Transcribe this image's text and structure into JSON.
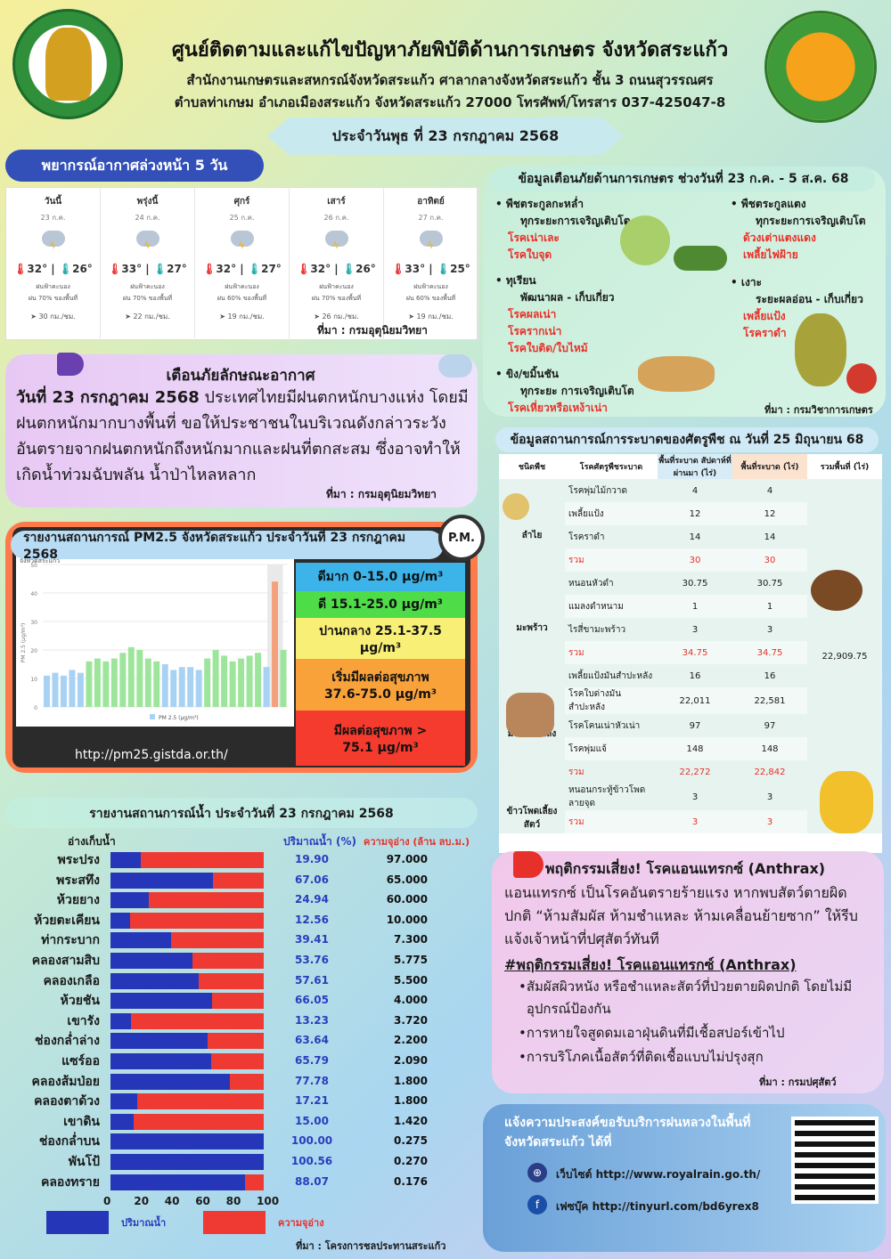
{
  "header": {
    "logo_left_text": "กระทรวงเกษตรและสหกรณ์ MINISTRY OF AGRICULTURE AND COOPERATIVES",
    "title": "ศูนย์ติดตามและแก้ไขปัญหาภัยพิบัติด้านการเกษตร จังหวัดสระแก้ว",
    "address1": "สำนักงานเกษตรและสหกรณ์จังหวัดสระแก้ว ศาลากลางจังหวัดสระแก้ว ชั้น 3 ถนนสุวรรณศร",
    "address2": "ตำบลท่าเกษม อำเภอเมืองสระแก้ว จังหวัดสระแก้ว 27000 โทรศัพท์/โทรสาร 037-425047-8",
    "date": "ประจำวันพุธ ที่ 23 กรกฎาคม 2568"
  },
  "forecast": {
    "title": "พยากรณ์อากาศล่วงหน้า 5 วัน",
    "source": "ที่มา : กรมอุตุนิยมวิทยา",
    "days": [
      {
        "day": "วันนี้",
        "date": "23 ก.ค.",
        "hi": "32°",
        "lo": "26°",
        "cond": "ฝนฟ้าคะนอง",
        "rain": "ฝน 70% ของพื้นที่",
        "wind": "30 กม./ชม."
      },
      {
        "day": "พรุ่งนี้",
        "date": "24 ก.ค.",
        "hi": "33°",
        "lo": "27°",
        "cond": "ฝนฟ้าคะนอง",
        "rain": "ฝน 70% ของพื้นที่",
        "wind": "22 กม./ชม."
      },
      {
        "day": "ศุกร์",
        "date": "25 ก.ค.",
        "hi": "32°",
        "lo": "27°",
        "cond": "ฝนฟ้าคะนอง",
        "rain": "ฝน 60% ของพื้นที่",
        "wind": "19 กม./ชม."
      },
      {
        "day": "เสาร์",
        "date": "26 ก.ค.",
        "hi": "32°",
        "lo": "26°",
        "cond": "ฝนฟ้าคะนอง",
        "rain": "ฝน 70% ของพื้นที่",
        "wind": "26 กม./ชม."
      },
      {
        "day": "อาทิตย์",
        "date": "27 ก.ค.",
        "hi": "33°",
        "lo": "25°",
        "cond": "ฝนฟ้าคะนอง",
        "rain": "ฝน 60% ของพื้นที่",
        "wind": "19 กม./ชม."
      }
    ]
  },
  "warning": {
    "title": "เตือนภัยลักษณะอากาศ",
    "lead": "วันที่  23 กรกฎาคม 2568",
    "body": " ประเทศไทยมีฝนตกหนักบางแห่ง โดยมีฝนตกหนักมากบางพื้นที่ ขอให้ประชาชนในบริเวณดังกล่าวระวังอันตรายจากฝนตกหนักถึงหนักมากและฝนที่ตกสะสม ซึ่งอาจทำให้เกิดน้ำท่วมฉับพลัน น้ำป่าไหลหลาก",
    "source": "ที่มา : กรมอุตุนิยมวิทยา"
  },
  "alert": {
    "title": "ข้อมูลเตือนภัยด้านการเกษตร ช่วงวันที่ 23 ก.ค. - 5 ส.ค. 68",
    "source": "ที่มา : กรมวิชาการเกษตร",
    "left": [
      {
        "crop": "พืชตระกูลกะหล่ำ",
        "stage": "ทุกระยะการเจริญเติบโต",
        "risks": [
          "โรคเน่าเละ",
          "โรคใบจุด"
        ]
      },
      {
        "crop": "ทุเรียน",
        "stage": "พัฒนาผล - เก็บเกี่ยว",
        "risks": [
          "โรคผลเน่า",
          "โรครากเน่า",
          "โรคใบติด/ใบไหม้"
        ]
      },
      {
        "crop": "ขิง/ขมิ้นชัน",
        "stage": "ทุกระยะ การเจริญเติบโต",
        "risks": [
          "โรคเหี่ยวหรือเหง้าเน่า"
        ]
      }
    ],
    "right": [
      {
        "crop": "พืชตระกูลแตง",
        "stage": "ทุกระยะการเจริญเติบโต",
        "risks": [
          "ด้วงเต่าแตงแดง",
          "เพลี้ยไฟฝ้าย"
        ]
      },
      {
        "crop": "เงาะ",
        "stage": "ระยะผลอ่อน - เก็บเกี่ยว",
        "risks": [
          "เพลี้ยแป้ง",
          "โรคราดำ"
        ]
      }
    ]
  },
  "pest": {
    "title": "ข้อมูลสถานการณ์การระบาดของศัตรูพืช ณ วันที่ 25 มิถุนายน 68",
    "headers": [
      "ชนิดพืช",
      "โรคศัตรูพืชระบาด",
      "พื้นที่ระบาด สัปดาห์ที่ผ่านมา (ไร่)",
      "พื้นที่ระบาด (ไร่)",
      "รวมพื้นที่ (ไร่)"
    ],
    "total": "22,909.75",
    "groups": [
      {
        "crop": "ลำไย",
        "rows": [
          {
            "name": "โรคพุ่มไม้กวาด",
            "prev": "4",
            "cur": "4"
          },
          {
            "name": "เพลี้ยแป้ง",
            "prev": "12",
            "cur": "12"
          },
          {
            "name": "โรคราดำ",
            "prev": "14",
            "cur": "14"
          },
          {
            "name": "รวม",
            "prev": "30",
            "cur": "30",
            "sum": true
          }
        ]
      },
      {
        "crop": "มะพร้าว",
        "rows": [
          {
            "name": "หนอนหัวดำ",
            "prev": "30.75",
            "cur": "30.75"
          },
          {
            "name": "แมลงดำหนาม",
            "prev": "1",
            "cur": "1"
          },
          {
            "name": "ไรสี่ขามะพร้าว",
            "prev": "3",
            "cur": "3"
          },
          {
            "name": "รวม",
            "prev": "34.75",
            "cur": "34.75",
            "sum": true
          }
        ]
      },
      {
        "crop": "มันสำปะหลัง",
        "rows": [
          {
            "name": "เพลี้ยแป้งมันสำปะหลัง",
            "prev": "16",
            "cur": "16"
          },
          {
            "name": "โรคใบด่างมันสำปะหลัง",
            "prev": "22,011",
            "cur": "22,581"
          },
          {
            "name": "โรคโคนเน่าหัวเน่า",
            "prev": "97",
            "cur": "97"
          },
          {
            "name": "โรคพุ่มแจ้",
            "prev": "148",
            "cur": "148"
          },
          {
            "name": "รวม",
            "prev": "22,272",
            "cur": "22,842",
            "sum": true
          }
        ]
      },
      {
        "crop": "ข้าวโพดเลี้ยงสัตว์",
        "rows": [
          {
            "name": "หนอนกระทู้ข้าวโพดลายจุด",
            "prev": "3",
            "cur": "3"
          },
          {
            "name": "รวม",
            "prev": "3",
            "cur": "3",
            "sum": true
          }
        ]
      }
    ]
  },
  "pm25": {
    "title": "รายงานสถานการณ์ PM2.5 จังหวัดสระแก้ว ประจำวันที่ 23 กรกฎาคม 2568",
    "badge": "P.M.",
    "url": "http://pm25.gistda.or.th/",
    "chart_label": "จังหวัดสระแก้ว",
    "legend_series": "PM 2.5 (µg/m³)",
    "ylabel": "PM 2.5 (µg/m³)",
    "levels": [
      {
        "label": "ดีมาก 0-15.0 µg/m³",
        "color": "#3cb4ea"
      },
      {
        "label": "ดี 15.1-25.0 µg/m³",
        "color": "#4fdc49"
      },
      {
        "label": "ปานกลาง 25.1-37.5 µg/m³",
        "color": "#f7ef76"
      },
      {
        "label": "เริ่มมีผลต่อสุขภาพ 37.6-75.0 µg/m³",
        "color": "#f9a23a"
      },
      {
        "label": "มีผลต่อสุขภาพ > 75.1 µg/m³",
        "color": "#f43b2d"
      }
    ]
  },
  "chart_data": {
    "type": "bar",
    "title": "จังหวัดสระแก้ว",
    "ylabel": "PM 2.5 (µg/m³)",
    "ylim": [
      0,
      50
    ],
    "yticks": [
      0,
      10,
      20,
      30,
      40,
      50
    ],
    "series": [
      {
        "name": "PM 2.5 (µg/m³)",
        "values": [
          11,
          12,
          11,
          13,
          12,
          16,
          17,
          16,
          17,
          19,
          21,
          20,
          17,
          16,
          15,
          13,
          14,
          14,
          13,
          17,
          20,
          18,
          16,
          17,
          18,
          19,
          14,
          44,
          20
        ]
      }
    ]
  },
  "water": {
    "title": "รายงานสถานการณ์น้ำ ประจำวันที่ 23 กรกฎาคม 2568",
    "col_res": "อ่างเก็บน้ำ",
    "col_pct": "ปริมาณน้ำ (%)",
    "col_cap": "ความจุอ่าง (ล้าน ลบ.ม.)",
    "legend_fill": "ปริมาณน้ำ",
    "legend_cap": "ความจุอ่าง",
    "axis": [
      "0",
      "20",
      "40",
      "60",
      "80",
      "100"
    ],
    "source": "ที่มา : โครงการชลประทานสระแก้ว",
    "reservoirs": [
      {
        "name": "พระปรง",
        "pct": "19.90",
        "cap": "97.000"
      },
      {
        "name": "พระสทึง",
        "pct": "67.06",
        "cap": "65.000"
      },
      {
        "name": "ห้วยยาง",
        "pct": "24.94",
        "cap": "60.000"
      },
      {
        "name": "ห้วยตะเคียน",
        "pct": "12.56",
        "cap": "10.000"
      },
      {
        "name": "ท่ากระบาก",
        "pct": "39.41",
        "cap": "7.300"
      },
      {
        "name": "คลองสามสิบ",
        "pct": "53.76",
        "cap": "5.775"
      },
      {
        "name": "คลองเกลือ",
        "pct": "57.61",
        "cap": "5.500"
      },
      {
        "name": "ห้วยชัน",
        "pct": "66.05",
        "cap": "4.000"
      },
      {
        "name": "เขารัง",
        "pct": "13.23",
        "cap": "3.720"
      },
      {
        "name": "ช่องกล่ำล่าง",
        "pct": "63.64",
        "cap": "2.200"
      },
      {
        "name": "แซร์ออ",
        "pct": "65.79",
        "cap": "2.090"
      },
      {
        "name": "คลองส้มป่อย",
        "pct": "77.78",
        "cap": "1.800"
      },
      {
        "name": "คลองตาด้วง",
        "pct": "17.21",
        "cap": "1.800"
      },
      {
        "name": "เขาดิน",
        "pct": "15.00",
        "cap": "1.420"
      },
      {
        "name": "ช่องกล่ำบน",
        "pct": "100.00",
        "cap": "0.275"
      },
      {
        "name": "พันโป้",
        "pct": "100.56",
        "cap": "0.270"
      },
      {
        "name": "คลองทราย",
        "pct": "88.07",
        "cap": "0.176"
      }
    ]
  },
  "anthrax": {
    "title": "พฤติกรรมเสี่ยง! โรคแอนแทรกซ์ (Anthrax)",
    "body": "แอนแทรกซ์ เป็นโรคอันตรายร้ายแรง หากพบสัตว์ตายผิดปกติ “ห้ามสัมผัส ห้ามชำแหละ ห้ามเคลื่อนย้ายซาก” ให้รีบแจ้งเจ้าหน้าที่ปศุสัตว์ทันที",
    "subtitle": "#พฤติกรรมเสี่ยง! โรคแอนแทรกซ์ (Anthrax)",
    "bullets": [
      "สัมผัสผิวหนัง หรือชำแหละสัตว์ที่ป่วยตายผิดปกติ โดยไม่มีอุปกรณ์ป้องกัน",
      "การหายใจสูดดมเอาฝุ่นดินที่มีเชื้อสปอร์เข้าไป",
      "การบริโภคเนื้อสัตว์ที่ติดเชื้อแบบไม่ปรุงสุก"
    ],
    "source": "ที่มา : กรมปศุสัตว์"
  },
  "rain": {
    "title": "แจ้งความประสงค์ขอรับบริการฝนหลวงในพื้นที่จังหวัดสระแก้ว ได้ที่",
    "website": "เว็บไซต์ http://www.royalrain.go.th/",
    "facebook": "เฟซบุ๊ค http://tinyurl.com/bd6yrex8"
  },
  "colors": {
    "water_fill": "#2636b8",
    "water_cap": "#ef3a33",
    "alert_red": "#e8302a",
    "title_blue": "#2d3fa0"
  }
}
